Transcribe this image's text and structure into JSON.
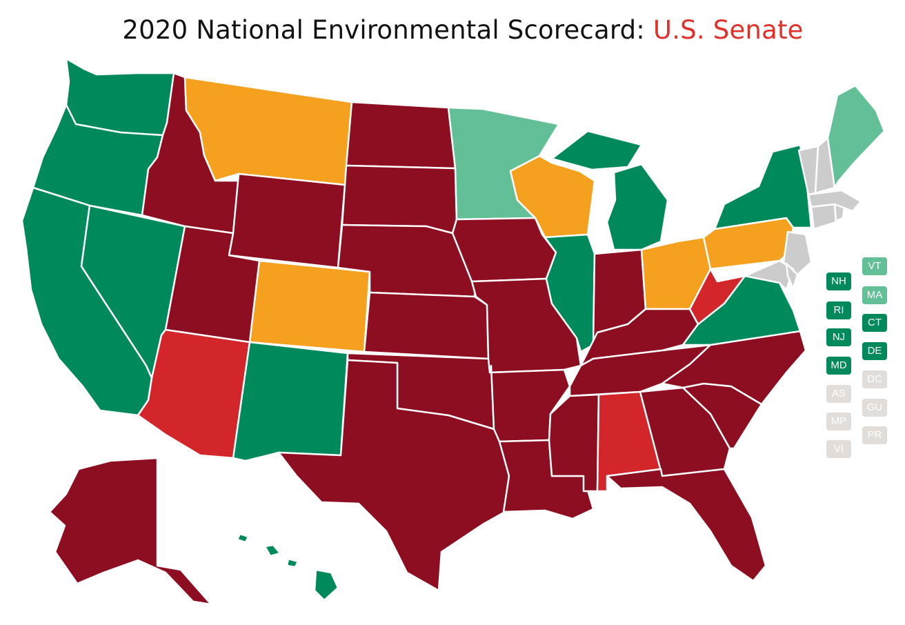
{
  "title": {
    "main": "2020 National Environmental Scorecard: ",
    "highlight": "U.S. Senate"
  },
  "colors": {
    "dark_green": "#008a5c",
    "light_green": "#63c096",
    "orange": "#f5a11f",
    "red": "#d2262b",
    "dark_red": "#8e0e21",
    "grey": "#e2ddd8",
    "highlight": "#e0302a"
  },
  "states": {
    "WA": "dark_green",
    "OR": "dark_green",
    "CA": "dark_green",
    "NV": "dark_green",
    "ID": "dark_red",
    "MT": "orange",
    "WY": "dark_red",
    "UT": "dark_red",
    "CO": "orange",
    "AZ": "red",
    "NM": "dark_green",
    "ND": "dark_red",
    "SD": "dark_red",
    "NE": "dark_red",
    "KS": "dark_red",
    "OK": "dark_red",
    "TX": "dark_red",
    "MN": "light_green",
    "IA": "dark_red",
    "MO": "dark_red",
    "AR": "dark_red",
    "LA": "dark_red",
    "WI": "orange",
    "IL": "dark_green",
    "MI": "dark_green",
    "IN": "dark_red",
    "OH": "orange",
    "KY": "dark_red",
    "TN": "dark_red",
    "MS": "dark_red",
    "AL": "red",
    "GA": "dark_red",
    "FL": "dark_red",
    "SC": "dark_red",
    "NC": "dark_red",
    "VA": "dark_green",
    "WV": "red",
    "PA": "orange",
    "NY": "dark_green",
    "ME": "light_green",
    "AK": "dark_red",
    "HI": "dark_green"
  },
  "small_states": [
    {
      "label": "NH",
      "fill": "dark_green"
    },
    {
      "label": "VT",
      "fill": "light_green"
    },
    {
      "label": "RI",
      "fill": "dark_green"
    },
    {
      "label": "MA",
      "fill": "light_green"
    },
    {
      "label": "NJ",
      "fill": "dark_green"
    },
    {
      "label": "CT",
      "fill": "dark_green"
    },
    {
      "label": "MD",
      "fill": "dark_green"
    },
    {
      "label": "DE",
      "fill": "dark_green"
    },
    {
      "label": "AS",
      "fill": "grey"
    },
    {
      "label": "DC",
      "fill": "grey"
    },
    {
      "label": "MP",
      "fill": "grey"
    },
    {
      "label": "GU",
      "fill": "grey"
    },
    {
      "label": "VI",
      "fill": "grey"
    },
    {
      "label": "PR",
      "fill": "grey"
    }
  ]
}
